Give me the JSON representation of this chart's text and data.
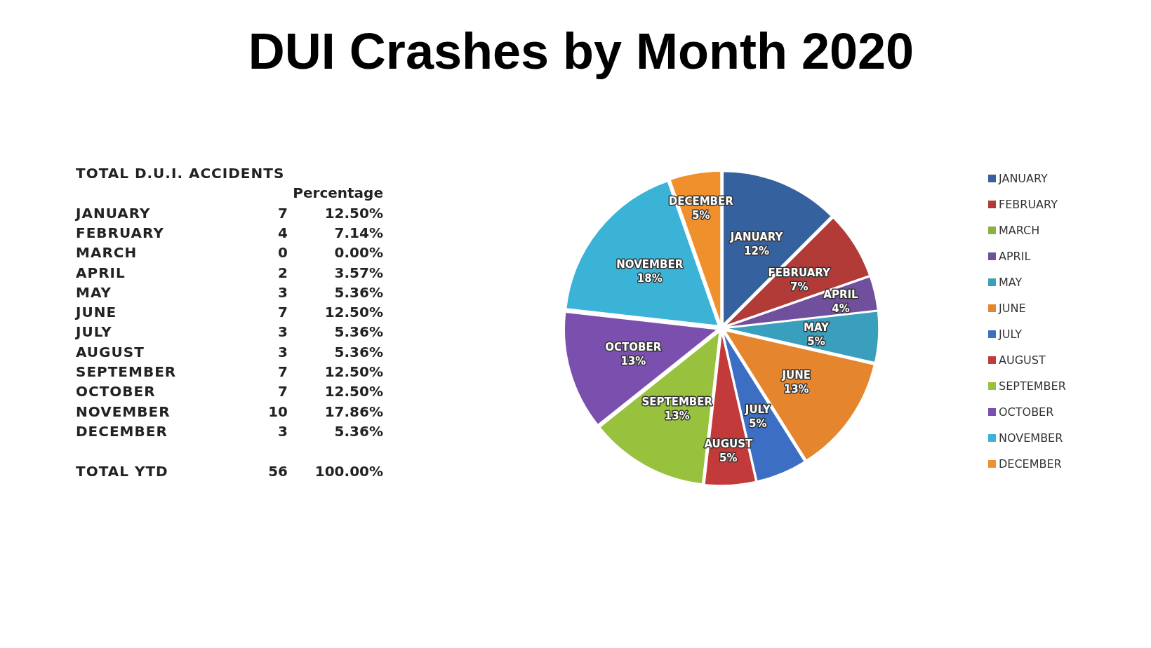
{
  "chart_data": [
    {
      "type": "other",
      "title": "TOTAL D.U.I. ACCIDENTS",
      "categories": [
        "JANUARY",
        "FEBRUARY",
        "MARCH",
        "APRIL",
        "MAY",
        "JUNE",
        "JULY",
        "AUGUST",
        "SEPTEMBER",
        "OCTOBER",
        "NOVEMBER",
        "DECEMBER",
        null,
        "TOTAL YTD"
      ],
      "values": [
        7,
        4,
        0,
        2,
        3,
        7,
        3,
        3,
        7,
        7,
        10,
        3,
        null,
        56
      ],
      "data_labels": true,
      "annotations": [
        "Percentage",
        "12.50%",
        "7.14%",
        "0.00%",
        "3.57%",
        "5.36%",
        "12.50%",
        "5.36%",
        "5.36%",
        "12.50%",
        "12.50%",
        "17.86%",
        "5.36%",
        "100.00%"
      ]
    },
    {
      "type": "pie",
      "title": "DUI Crashes by Month 2020",
      "categories": [
        "JANUARY",
        "FEBRUARY",
        "MARCH",
        "APRIL",
        "MAY",
        "JUNE",
        "JULY",
        "AUGUST",
        "SEPTEMBER",
        "OCTOBER",
        "NOVEMBER",
        "DECEMBER"
      ],
      "values": [
        12.5,
        7.14,
        0,
        3.57,
        5.36,
        12.5,
        5.36,
        5.36,
        12.5,
        12.5,
        17.86,
        5.36
      ],
      "value_labels": [
        "12%",
        "7%",
        null,
        "4%",
        "5%",
        "13%",
        "5%",
        "5%",
        "13%",
        "13%",
        "18%",
        "5%"
      ],
      "colors": [
        "#36619f",
        "#b23b37",
        "#8cb043",
        "#70509c",
        "#3a9fbd",
        "#e5852d",
        "#3c6fc4",
        "#c23a3a",
        "#98c23e",
        "#7a4fae",
        "#3ab3d6",
        "#f0902c"
      ],
      "legend": "right"
    }
  ]
}
